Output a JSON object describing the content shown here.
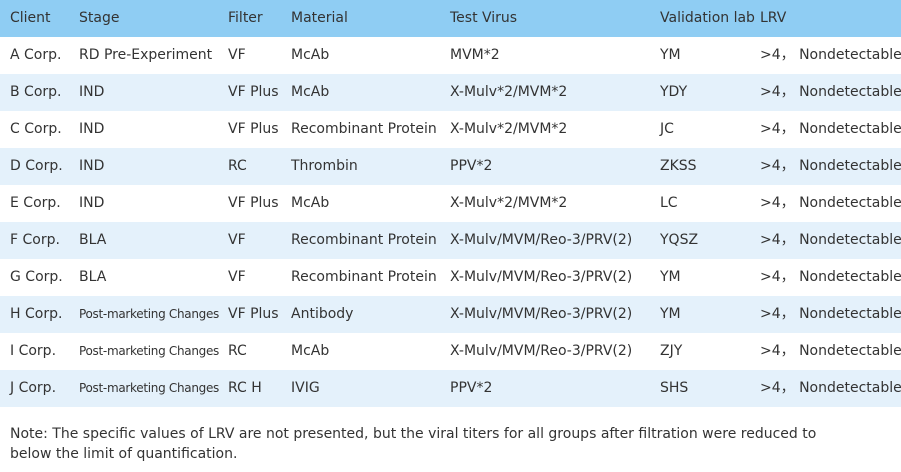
{
  "table": {
    "header": [
      "Client",
      "Stage",
      "Filter",
      "Material",
      "Test Virus",
      "Validation lab",
      "LRV"
    ],
    "rows": [
      [
        "A Corp.",
        "RD Pre-Experiment",
        "VF",
        "McAb",
        "MVM*2",
        "YM",
        ">4， Nondetectable"
      ],
      [
        "B Corp.",
        "IND",
        "VF Plus",
        "McAb",
        "X-Mulv*2/MVM*2",
        "YDY",
        ">4， Nondetectable"
      ],
      [
        "C Corp.",
        "IND",
        "VF Plus",
        "Recombinant Protein",
        "X-Mulv*2/MVM*2",
        "JC",
        ">4， Nondetectable"
      ],
      [
        "D Corp.",
        "IND",
        "RC",
        "Thrombin",
        "PPV*2",
        "ZKSS",
        ">4， Nondetectable"
      ],
      [
        "E Corp.",
        "IND",
        "VF Plus",
        "McAb",
        "X-Mulv*2/MVM*2",
        "LC",
        ">4， Nondetectable"
      ],
      [
        "F Corp.",
        "BLA",
        "VF",
        "Recombinant Protein",
        "X-Mulv/MVM/Reo-3/PRV(2)",
        "YQSZ",
        ">4， Nondetectable"
      ],
      [
        "G Corp.",
        "BLA",
        "VF",
        "Recombinant Protein",
        "X-Mulv/MVM/Reo-3/PRV(2)",
        "YM",
        ">4， Nondetectable"
      ],
      [
        "H Corp.",
        "Post-marketing Changes",
        "VF Plus",
        "Antibody",
        "X-Mulv/MVM/Reo-3/PRV(2)",
        "YM",
        ">4， Nondetectable"
      ],
      [
        " I Corp.",
        "Post-marketing Changes",
        "RC",
        "McAb",
        "X-Mulv/MVM/Reo-3/PRV(2)",
        "ZJY",
        ">4， Nondetectable"
      ],
      [
        " J Corp.",
        "Post-marketing Changes",
        "RC H",
        "IVIG",
        "PPV*2",
        "SHS",
        ">4， Nondetectable"
      ]
    ]
  },
  "note": "Note: The specific values of LRV are not presented, but the viral titers for all groups after filtration were reduced to below the limit of quantification."
}
